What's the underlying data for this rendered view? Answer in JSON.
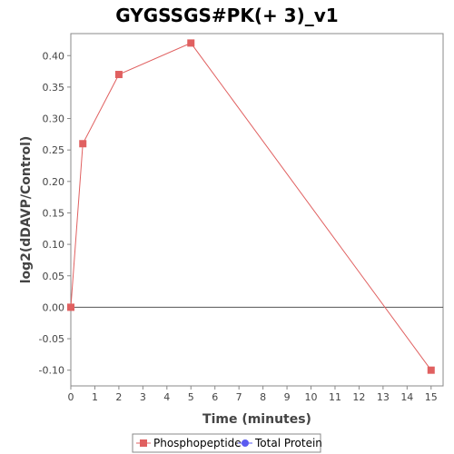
{
  "chart_data": {
    "type": "line",
    "title": "GYGSSGS#PK(+ 3)_v1",
    "xlabel": "Time (minutes)",
    "ylabel": "log2(dDAVP/Control)",
    "xlim": [
      0,
      15.5
    ],
    "ylim": [
      -0.125,
      0.435
    ],
    "x_ticks": [
      0,
      1,
      2,
      3,
      4,
      5,
      6,
      7,
      8,
      9,
      10,
      11,
      12,
      13,
      14,
      15
    ],
    "x_tick_labels": [
      "0",
      "1",
      "2",
      "3",
      "4",
      "5",
      "6",
      "7",
      "8",
      "9",
      "10",
      "11",
      "12",
      "13",
      "14",
      "15"
    ],
    "y_ticks": [
      -0.1,
      -0.05,
      0.0,
      0.05,
      0.1,
      0.15,
      0.2,
      0.25,
      0.3,
      0.35,
      0.4
    ],
    "y_tick_labels": [
      "-0.10",
      "-0.05",
      "0.00",
      "0.05",
      "0.10",
      "0.15",
      "0.20",
      "0.25",
      "0.30",
      "0.35",
      "0.40"
    ],
    "zero_line": true,
    "grid": false,
    "legend_position": "bottom-center",
    "series": [
      {
        "name": "Phosphopeptide",
        "color": "#e06060",
        "marker": "square",
        "x": [
          0,
          0.5,
          2,
          5,
          15
        ],
        "y": [
          0.0,
          0.26,
          0.37,
          0.42,
          -0.1
        ]
      },
      {
        "name": "Total Protein",
        "color": "#5b5bf0",
        "marker": "circle",
        "x": [],
        "y": []
      }
    ]
  }
}
